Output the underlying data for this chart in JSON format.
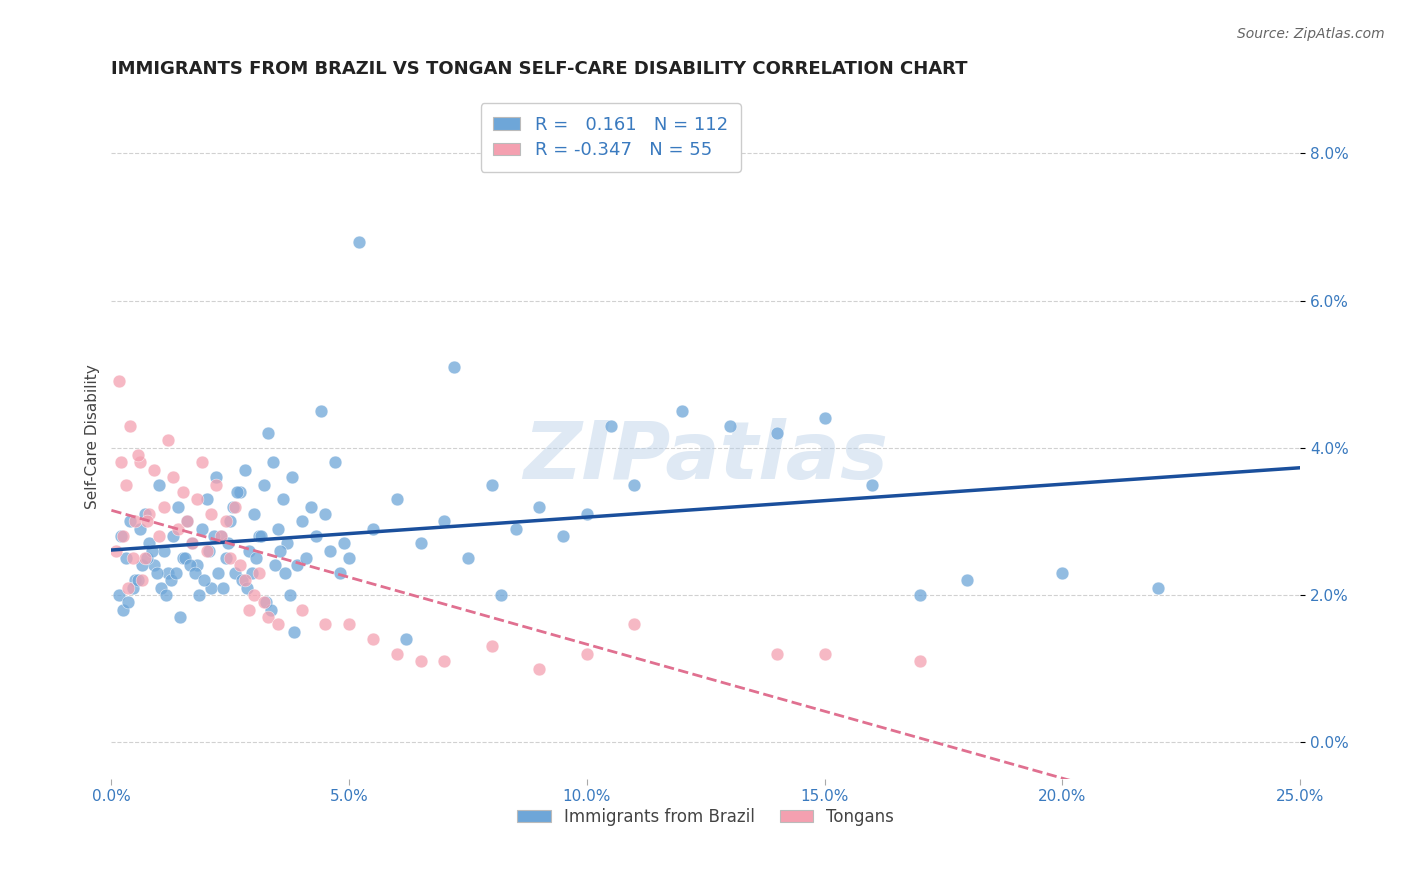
{
  "title": "IMMIGRANTS FROM BRAZIL VS TONGAN SELF-CARE DISABILITY CORRELATION CHART",
  "source": "Source: ZipAtlas.com",
  "xlabel_vals": [
    0.0,
    5.0,
    10.0,
    15.0,
    20.0,
    25.0
  ],
  "ylabel": "Self-Care Disability",
  "ylabel_vals": [
    0.0,
    2.0,
    4.0,
    6.0,
    8.0
  ],
  "xlim": [
    0.0,
    25.0
  ],
  "ylim": [
    -0.5,
    8.8
  ],
  "R_brazil": 0.161,
  "N_brazil": 112,
  "R_tongan": -0.347,
  "N_tongan": 55,
  "color_brazil": "#6ea6d8",
  "color_tongan": "#f4a0b0",
  "color_brazil_line": "#1a4f9c",
  "color_tongan_line": "#e07090",
  "watermark": "ZIPatlas",
  "brazil_scatter_x": [
    0.2,
    0.3,
    0.4,
    0.5,
    0.6,
    0.7,
    0.8,
    0.9,
    1.0,
    1.1,
    1.2,
    1.3,
    1.4,
    1.5,
    1.6,
    1.7,
    1.8,
    1.9,
    2.0,
    2.1,
    2.2,
    2.3,
    2.4,
    2.5,
    2.6,
    2.7,
    2.8,
    2.9,
    3.0,
    3.1,
    3.2,
    3.3,
    3.4,
    3.5,
    3.6,
    3.7,
    3.8,
    3.9,
    4.0,
    4.1,
    4.2,
    4.3,
    4.4,
    4.5,
    4.6,
    4.7,
    4.8,
    4.9,
    5.0,
    5.5,
    6.0,
    6.5,
    7.0,
    7.5,
    8.0,
    8.5,
    9.0,
    9.5,
    10.0,
    10.5,
    11.0,
    12.0,
    13.0,
    14.0,
    15.0,
    16.0,
    17.0,
    18.0,
    20.0,
    22.0,
    0.15,
    0.25,
    0.35,
    0.45,
    0.55,
    0.65,
    0.75,
    0.85,
    0.95,
    1.05,
    1.15,
    1.25,
    1.35,
    1.45,
    1.55,
    1.65,
    1.75,
    1.85,
    1.95,
    2.05,
    2.15,
    2.25,
    2.35,
    2.45,
    2.55,
    2.65,
    2.75,
    2.85,
    2.95,
    3.05,
    3.15,
    3.25,
    3.35,
    3.45,
    3.55,
    3.65,
    3.75,
    3.85,
    5.2,
    6.2,
    7.2,
    8.2
  ],
  "brazil_scatter_y": [
    2.8,
    2.5,
    3.0,
    2.2,
    2.9,
    3.1,
    2.7,
    2.4,
    3.5,
    2.6,
    2.3,
    2.8,
    3.2,
    2.5,
    3.0,
    2.7,
    2.4,
    2.9,
    3.3,
    2.1,
    3.6,
    2.8,
    2.5,
    3.0,
    2.3,
    3.4,
    3.7,
    2.6,
    3.1,
    2.8,
    3.5,
    4.2,
    3.8,
    2.9,
    3.3,
    2.7,
    3.6,
    2.4,
    3.0,
    2.5,
    3.2,
    2.8,
    4.5,
    3.1,
    2.6,
    3.8,
    2.3,
    2.7,
    2.5,
    2.9,
    3.3,
    2.7,
    3.0,
    2.5,
    3.5,
    2.9,
    3.2,
    2.8,
    3.1,
    4.3,
    3.5,
    4.5,
    4.3,
    4.2,
    4.4,
    3.5,
    2.0,
    2.2,
    2.3,
    2.1,
    2.0,
    1.8,
    1.9,
    2.1,
    2.2,
    2.4,
    2.5,
    2.6,
    2.3,
    2.1,
    2.0,
    2.2,
    2.3,
    1.7,
    2.5,
    2.4,
    2.3,
    2.0,
    2.2,
    2.6,
    2.8,
    2.3,
    2.1,
    2.7,
    3.2,
    3.4,
    2.2,
    2.1,
    2.3,
    2.5,
    2.8,
    1.9,
    1.8,
    2.4,
    2.6,
    2.3,
    2.0,
    1.5,
    6.8,
    1.4,
    5.1,
    2.0
  ],
  "tongan_scatter_x": [
    0.1,
    0.2,
    0.3,
    0.4,
    0.5,
    0.6,
    0.7,
    0.8,
    0.9,
    1.0,
    1.1,
    1.2,
    1.3,
    1.4,
    1.5,
    1.6,
    1.7,
    1.8,
    1.9,
    2.0,
    2.1,
    2.2,
    2.3,
    2.4,
    2.5,
    2.6,
    2.7,
    2.8,
    2.9,
    3.0,
    3.1,
    3.2,
    3.3,
    3.5,
    4.0,
    4.5,
    5.0,
    5.5,
    6.0,
    6.5,
    7.0,
    8.0,
    9.0,
    10.0,
    11.0,
    14.0,
    15.0,
    17.0,
    0.15,
    0.25,
    0.35,
    0.45,
    0.55,
    0.65,
    0.75
  ],
  "tongan_scatter_y": [
    2.6,
    3.8,
    3.5,
    4.3,
    3.0,
    3.8,
    2.5,
    3.1,
    3.7,
    2.8,
    3.2,
    4.1,
    3.6,
    2.9,
    3.4,
    3.0,
    2.7,
    3.3,
    3.8,
    2.6,
    3.1,
    3.5,
    2.8,
    3.0,
    2.5,
    3.2,
    2.4,
    2.2,
    1.8,
    2.0,
    2.3,
    1.9,
    1.7,
    1.6,
    1.8,
    1.6,
    1.6,
    1.4,
    1.2,
    1.1,
    1.1,
    1.3,
    1.0,
    1.2,
    1.6,
    1.2,
    1.2,
    1.1,
    4.9,
    2.8,
    2.1,
    2.5,
    3.9,
    2.2,
    3.0
  ]
}
